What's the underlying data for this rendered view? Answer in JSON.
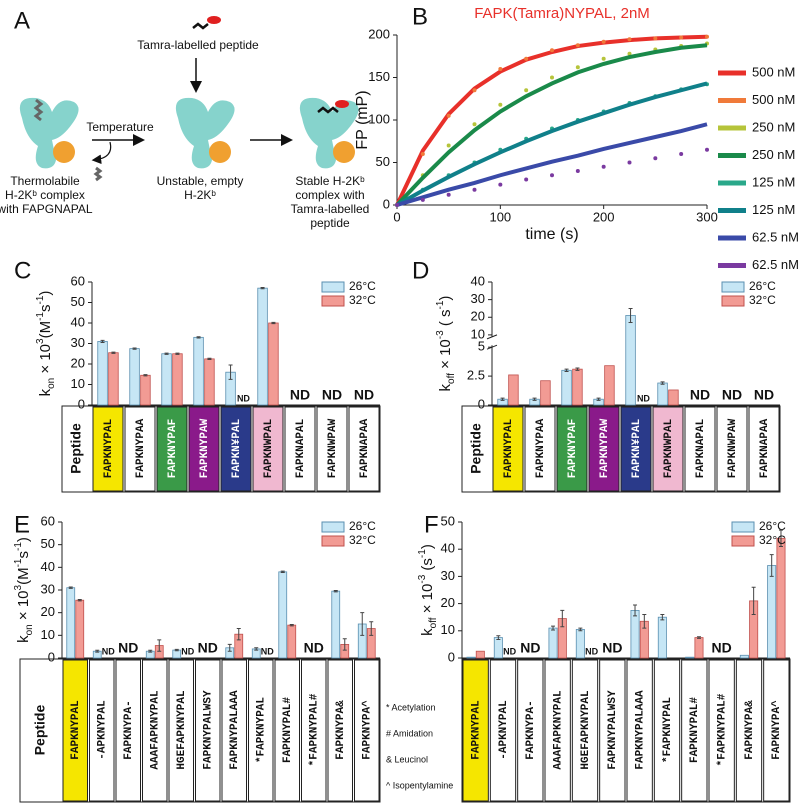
{
  "panel_labels": [
    "A",
    "B",
    "C",
    "D",
    "E",
    "F"
  ],
  "diagram": {
    "peptide_label": "Tamra-labelled peptide",
    "arrow_label": "Temperature",
    "states": [
      [
        "Thermolabile",
        "H-2Kᵇ complex",
        "with FAPGNAPAL"
      ],
      [
        "Unstable, empty",
        "H-2Kᵇ"
      ],
      [
        "Stable H-2Kᵇ",
        "complex with",
        "Tamra-labelled",
        "peptide"
      ]
    ]
  },
  "chart_data": [
    {
      "type": "line",
      "title": "FAPK(Tamra)NYPAL, 2nM",
      "title_color": "#e8302a",
      "xlabel": "time (s)",
      "ylabel": "FP (mP)",
      "x": [
        0,
        25,
        50,
        75,
        100,
        125,
        150,
        175,
        200,
        225,
        250,
        275,
        300
      ],
      "xlim": [
        0,
        300
      ],
      "xticks": [
        0,
        100,
        200,
        300
      ],
      "ylim": [
        0,
        200
      ],
      "yticks": [
        0,
        50,
        100,
        150,
        200
      ],
      "legend": "right",
      "series": [
        {
          "name": "500 nM",
          "color": "#e8302a",
          "style": "line",
          "values": [
            0,
            64,
            107,
            137,
            157,
            171,
            180,
            187,
            191,
            194,
            196,
            197,
            198
          ]
        },
        {
          "name": "500 nM",
          "color": "#f07a3a",
          "style": "dots",
          "values": [
            0,
            60,
            105,
            135,
            160,
            172,
            182,
            188,
            192,
            195,
            196,
            197,
            198
          ]
        },
        {
          "name": "250 nM",
          "color": "#b6c43a",
          "style": "dots",
          "values": [
            0,
            35,
            70,
            95,
            118,
            135,
            150,
            162,
            172,
            178,
            183,
            187,
            190
          ]
        },
        {
          "name": "250 nM",
          "color": "#1a8a4a",
          "style": "line",
          "values": [
            0,
            32,
            62,
            88,
            110,
            128,
            143,
            156,
            166,
            174,
            180,
            185,
            188
          ]
        },
        {
          "name": "125 nM",
          "color": "#2aa88a",
          "style": "dots",
          "values": [
            0,
            18,
            35,
            50,
            65,
            78,
            90,
            100,
            110,
            120,
            128,
            136,
            142
          ]
        },
        {
          "name": "125 nM",
          "color": "#10808a",
          "style": "line",
          "values": [
            0,
            17,
            33,
            48,
            62,
            75,
            87,
            98,
            108,
            118,
            127,
            135,
            143
          ]
        },
        {
          "name": "62.5 nM",
          "color": "#3a4aa8",
          "style": "line",
          "values": [
            0,
            9,
            18,
            26,
            35,
            43,
            51,
            58,
            66,
            73,
            80,
            87,
            95
          ]
        },
        {
          "name": "62.5 nM",
          "color": "#7a3aa0",
          "style": "dots",
          "values": [
            0,
            6,
            12,
            18,
            24,
            30,
            35,
            40,
            45,
            50,
            55,
            60,
            65
          ]
        }
      ]
    },
    {
      "type": "bar",
      "ylabel": [
        {
          "text": "k"
        },
        {
          "text": "on",
          "shift": "sub"
        },
        {
          "text": " × 10"
        },
        {
          "text": "3",
          "shift": "super"
        },
        {
          "text": "(M"
        },
        {
          "text": "-1",
          "shift": "super"
        },
        {
          "text": "s"
        },
        {
          "text": "-1",
          "shift": "super"
        },
        {
          "text": ")"
        }
      ],
      "ylim": [
        0,
        60
      ],
      "yticks": [
        0,
        10,
        20,
        30,
        40,
        50,
        60
      ],
      "legend": "upper right",
      "table_label": "Peptide",
      "categories": [
        "FAPKNYPAL",
        "FAPKNYPAA",
        "FAPKNYPAF",
        "FAPKNYPAW",
        "FAPKN¥PAL",
        "FAPKNWPAL",
        "FAPKNAPAL",
        "FAPKNWPAW",
        "FAPKNAPAA"
      ],
      "category_colors": [
        "#f5e600",
        "#ffffff",
        "#3a9a48",
        "#8a1a8a",
        "#2a3a8a",
        "#f0b8d0",
        "#ffffff",
        "#ffffff",
        "#ffffff"
      ],
      "series": [
        {
          "name": "26°C",
          "color": "#c6e6f5",
          "values": [
            31,
            27.5,
            25,
            33,
            16,
            57,
            null,
            null,
            null
          ],
          "errors": [
            0.5,
            0.3,
            0.3,
            0.3,
            3.5,
            0.3,
            null,
            null,
            null
          ],
          "value_labels": [
            null,
            null,
            null,
            null,
            null,
            null,
            "ND",
            "ND",
            "ND"
          ]
        },
        {
          "name": "32°C",
          "color": "#f29b94",
          "values": [
            25.5,
            14.5,
            25,
            22.5,
            null,
            40,
            null,
            null,
            null
          ],
          "errors": [
            0.3,
            0.3,
            0.3,
            0.3,
            null,
            0.3,
            null,
            null,
            null
          ],
          "value_labels": [
            null,
            null,
            null,
            null,
            "ND",
            null,
            null,
            null,
            null
          ]
        }
      ]
    },
    {
      "type": "bar",
      "ylabel": [
        {
          "text": "k"
        },
        {
          "text": "off",
          "shift": "sub"
        },
        {
          "text": " × 10"
        },
        {
          "text": "-3",
          "shift": "super"
        },
        {
          "text": " ( s"
        },
        {
          "text": "-1",
          "shift": "super"
        },
        {
          "text": ")"
        }
      ],
      "ylim": [
        0,
        40
      ],
      "yticks": [
        0,
        2.5,
        5,
        10,
        20,
        30,
        40
      ],
      "ybreak": [
        5,
        10
      ],
      "legend": "upper right",
      "table_label": "Peptide",
      "categories": [
        "FAPKNYPAL",
        "FAPKNYPAA",
        "FAPKNYPAF",
        "FAPKNYPAW",
        "FAPKN¥PAL",
        "FAPKNWPAL",
        "FAPKNAPAL",
        "FAPKNWPAW",
        "FAPKNAPAA"
      ],
      "category_colors": [
        "#f5e600",
        "#ffffff",
        "#3a9a48",
        "#8a1a8a",
        "#2a3a8a",
        "#f0b8d0",
        "#ffffff",
        "#ffffff",
        "#ffffff"
      ],
      "series": [
        {
          "name": "26°C",
          "color": "#c6e6f5",
          "values": [
            0.5,
            0.5,
            3,
            0.5,
            21,
            1.9,
            null,
            null,
            null
          ],
          "errors": [
            0.1,
            0.1,
            0.1,
            0.1,
            4,
            0.1,
            null,
            null,
            null
          ],
          "value_labels": [
            null,
            null,
            null,
            null,
            null,
            null,
            "ND",
            "ND",
            "ND"
          ]
        },
        {
          "name": "32°C",
          "color": "#f29b94",
          "values": [
            2.6,
            2.1,
            3.1,
            3.4,
            null,
            1.3,
            null,
            null,
            null
          ],
          "errors": [
            null,
            null,
            0.1,
            null,
            null,
            null,
            null,
            null,
            null
          ],
          "value_labels": [
            null,
            null,
            null,
            null,
            "ND",
            null,
            null,
            null,
            null
          ]
        }
      ]
    },
    {
      "type": "bar",
      "ylabel": [
        {
          "text": "k"
        },
        {
          "text": "on",
          "shift": "sub"
        },
        {
          "text": " × 10"
        },
        {
          "text": "3",
          "shift": "super"
        },
        {
          "text": "(M"
        },
        {
          "text": "-1",
          "shift": "super"
        },
        {
          "text": "s"
        },
        {
          "text": "-1",
          "shift": "super"
        },
        {
          "text": ")"
        }
      ],
      "ylim": [
        0,
        60
      ],
      "yticks": [
        0,
        10,
        20,
        30,
        40,
        50,
        60
      ],
      "legend": "upper right",
      "table_label": "Peptide",
      "categories": [
        "FAPKNYPAL",
        "-APKNYPAL",
        "FAPKNYPA-",
        "AAAFAPKNYPAL",
        "HGEFAPKNYPAL",
        "FAPKNYPALWSY",
        "FAPKNYPALAAA",
        "*FAPKNYPAL",
        "FAPKNYPAL#",
        "*FAPKNYPAL#",
        "FAPKNYPA&",
        "FAPKNYPA^"
      ],
      "category_colors": [
        "#f5e600",
        "#ffffff",
        "#ffffff",
        "#ffffff",
        "#ffffff",
        "#ffffff",
        "#ffffff",
        "#ffffff",
        "#ffffff",
        "#ffffff",
        "#ffffff",
        "#ffffff"
      ],
      "notes": [
        "* Acetylation",
        "# Amidation",
        "& Leucinol",
        "^ Isopentylamine"
      ],
      "series": [
        {
          "name": "26°C",
          "color": "#c6e6f5",
          "values": [
            31,
            3,
            null,
            3,
            3.5,
            null,
            4.5,
            4,
            38,
            null,
            29.5,
            15
          ],
          "errors": [
            0.3,
            0.4,
            null,
            0.4,
            0.3,
            null,
            1.5,
            0.5,
            0.3,
            null,
            0.3,
            5
          ],
          "value_labels": [
            null,
            null,
            "ND",
            null,
            null,
            "ND",
            null,
            null,
            null,
            "ND",
            null,
            null
          ]
        },
        {
          "name": "32°C",
          "color": "#f29b94",
          "values": [
            25.5,
            null,
            null,
            5.5,
            null,
            null,
            10.5,
            null,
            14.5,
            null,
            6,
            13
          ],
          "errors": [
            0.3,
            null,
            null,
            2.5,
            null,
            null,
            2.5,
            null,
            0.3,
            null,
            2.5,
            3
          ],
          "value_labels": [
            null,
            "ND",
            null,
            null,
            "ND",
            null,
            null,
            "ND",
            null,
            null,
            null,
            null
          ]
        }
      ]
    },
    {
      "type": "bar",
      "ylabel": [
        {
          "text": "k"
        },
        {
          "text": "off",
          "shift": "sub"
        },
        {
          "text": " × 10"
        },
        {
          "text": "-3",
          "shift": "super"
        },
        {
          "text": " (s"
        },
        {
          "text": "-1",
          "shift": "super"
        },
        {
          "text": ")"
        }
      ],
      "ylim": [
        0,
        50
      ],
      "yticks": [
        0,
        10,
        20,
        30,
        40,
        50
      ],
      "legend": "upper right",
      "categories": [
        "FAPKNYPAL",
        "-APKNYPAL",
        "FAPKNYPA-",
        "AAAFAPKNYPAL",
        "HGEFAPKNYPAL",
        "FAPKNYPALWSY",
        "FAPKNYPALAAA",
        "*FAPKNYPAL",
        "FAPKNYPAL#",
        "*FAPKNYPAL#",
        "FAPKNYPA&",
        "FAPKNYPA^"
      ],
      "category_colors": [
        "#f5e600",
        "#ffffff",
        "#ffffff",
        "#ffffff",
        "#ffffff",
        "#ffffff",
        "#ffffff",
        "#ffffff",
        "#ffffff",
        "#ffffff",
        "#ffffff",
        "#ffffff"
      ],
      "series": [
        {
          "name": "26°C",
          "color": "#c6e6f5",
          "values": [
            0.3,
            7.5,
            null,
            11,
            10.5,
            null,
            17.5,
            15,
            0.3,
            null,
            1,
            34
          ],
          "errors": [
            null,
            0.7,
            null,
            0.7,
            0.5,
            null,
            2,
            1,
            null,
            null,
            null,
            4
          ],
          "value_labels": [
            null,
            null,
            "ND",
            null,
            null,
            "ND",
            null,
            null,
            null,
            "ND",
            null,
            null
          ]
        },
        {
          "name": "32°C",
          "color": "#f29b94",
          "values": [
            2.5,
            null,
            null,
            14.5,
            null,
            null,
            13.5,
            null,
            7.5,
            null,
            21,
            44
          ],
          "errors": [
            null,
            null,
            null,
            3,
            null,
            null,
            2.5,
            null,
            0.3,
            null,
            5,
            3
          ],
          "value_labels": [
            null,
            "ND",
            null,
            null,
            "ND",
            null,
            null,
            null,
            null,
            null,
            null,
            null
          ]
        }
      ]
    }
  ]
}
